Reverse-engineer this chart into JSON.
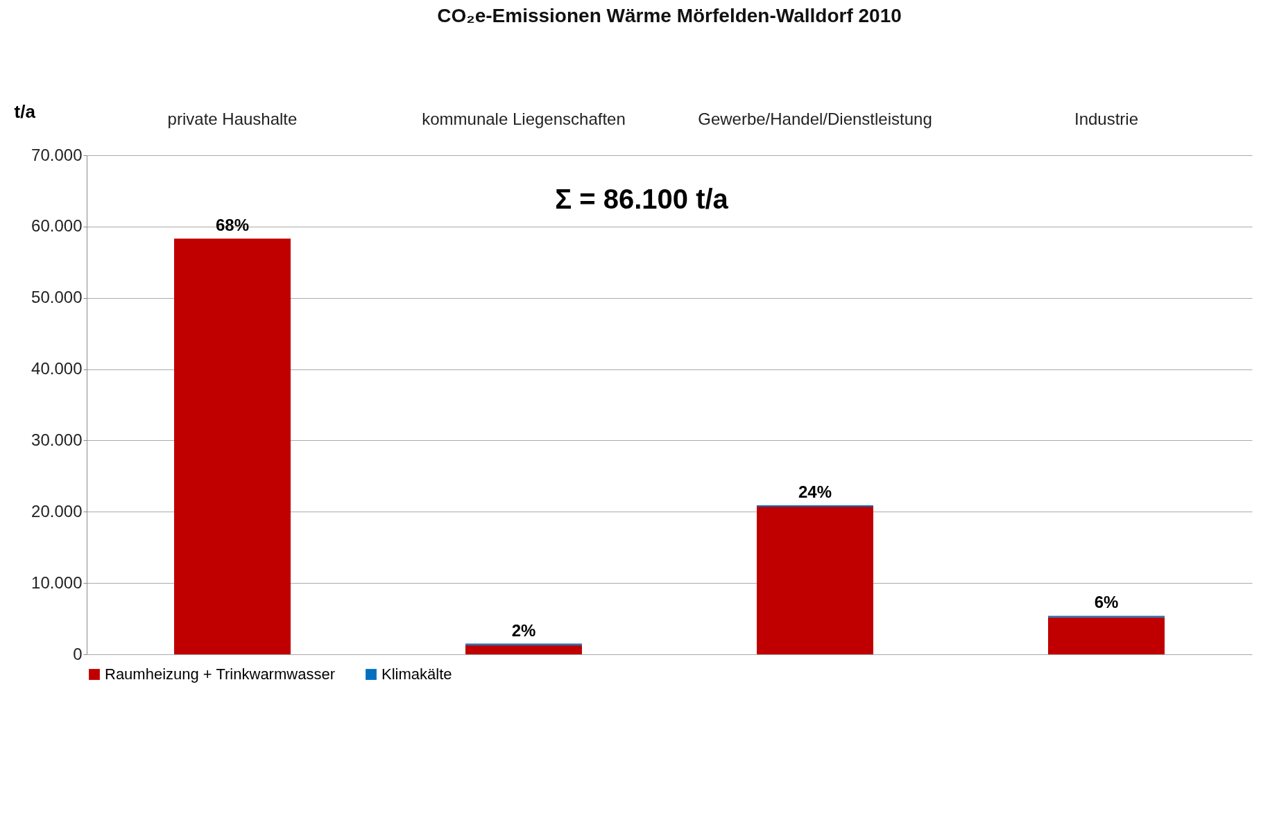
{
  "chart_data": {
    "type": "bar",
    "stacked": true,
    "title": "CO₂e-Emissionen Wärme Mörfelden-Walldorf 2010",
    "ylabel": "t/a",
    "categories": [
      "private Haushalte",
      "kommunale Liegenschaften",
      "Gewerbe/Handel/Dienstleistung",
      "Industrie"
    ],
    "series": [
      {
        "name": "Raumheizung + Trinkwarmwasser",
        "color": "#c00000",
        "values": [
          58300,
          1300,
          20700,
          5200
        ]
      },
      {
        "name": "Klimakälte",
        "color": "#0070c0",
        "values": [
          0,
          200,
          200,
          200
        ]
      }
    ],
    "ylim": [
      0,
      70000
    ],
    "yticks": [
      {
        "value": 0,
        "label": "0"
      },
      {
        "value": 10000,
        "label": "10.000"
      },
      {
        "value": 20000,
        "label": "20.000"
      },
      {
        "value": 30000,
        "label": "30.000"
      },
      {
        "value": 40000,
        "label": "40.000"
      },
      {
        "value": 50000,
        "label": "50.000"
      },
      {
        "value": 60000,
        "label": "60.000"
      },
      {
        "value": 70000,
        "label": "70.000"
      }
    ],
    "grid": "y",
    "legend": "bottom",
    "annotations": [
      "Σ = 86.100 t/a",
      {
        "text": "68%",
        "x": "private Haushalte",
        "y": 58300
      },
      {
        "text": "2%",
        "x": "kommunale Liegenschaften",
        "y": 1500
      },
      {
        "text": "24%",
        "x": "Gewerbe/Handel/Dienstleistung",
        "y": 20900
      },
      {
        "text": "6%",
        "x": "Industrie",
        "y": 5400
      }
    ]
  }
}
